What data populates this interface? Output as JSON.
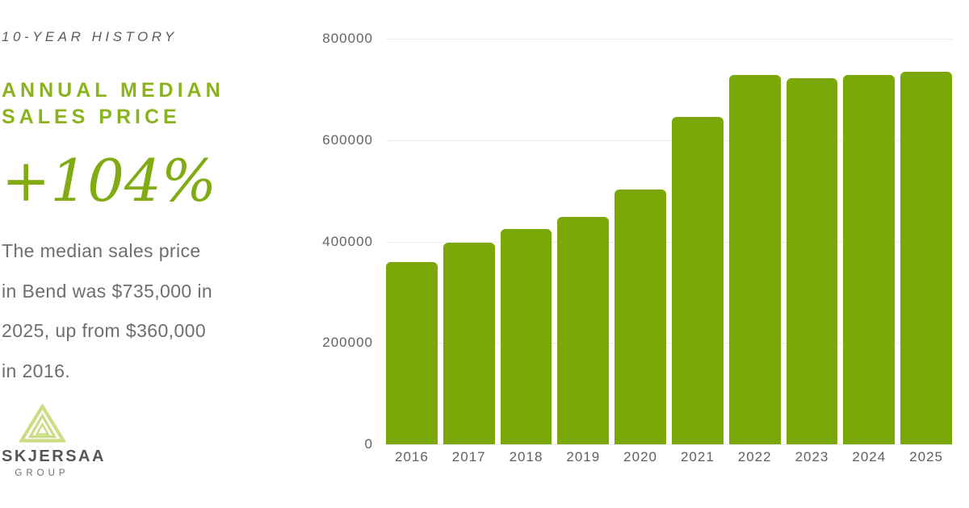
{
  "left_panel": {
    "eyebrow": "10-YEAR HISTORY",
    "title_lines": [
      "ANNUAL MEDIAN",
      "SALES PRICE"
    ],
    "percent_change": "+104%",
    "description_lines": [
      "The median sales price",
      "in Bend was $735,000 in",
      "2025, up from $360,000",
      "in 2016."
    ],
    "brand": {
      "name": "SKJERSAA",
      "subtitle": "GROUP",
      "logo_icon": "mountain-triangle-icon"
    }
  },
  "colors": {
    "accent_green": "#8bb31e",
    "pct_green": "#81ab12",
    "bar_green": "#79a807",
    "logo_lime": "#cadd84",
    "text_gray": "#6d6e70",
    "axis_gray": "#636363",
    "gridline": "#ebebeb",
    "background": "#ffffff"
  },
  "chart_data": {
    "type": "bar",
    "title": "Annual Median Sales Price",
    "xlabel": "",
    "ylabel": "",
    "categories": [
      "2016",
      "2017",
      "2018",
      "2019",
      "2020",
      "2021",
      "2022",
      "2023",
      "2024",
      "2025"
    ],
    "values": [
      360000,
      398000,
      425000,
      448000,
      503000,
      646000,
      729000,
      722000,
      729000,
      735000
    ],
    "ylim": [
      0,
      800000
    ],
    "y_ticks": [
      0,
      200000,
      400000,
      600000,
      800000
    ],
    "grid": true,
    "legend": "none",
    "bar_color": "#79a807"
  }
}
